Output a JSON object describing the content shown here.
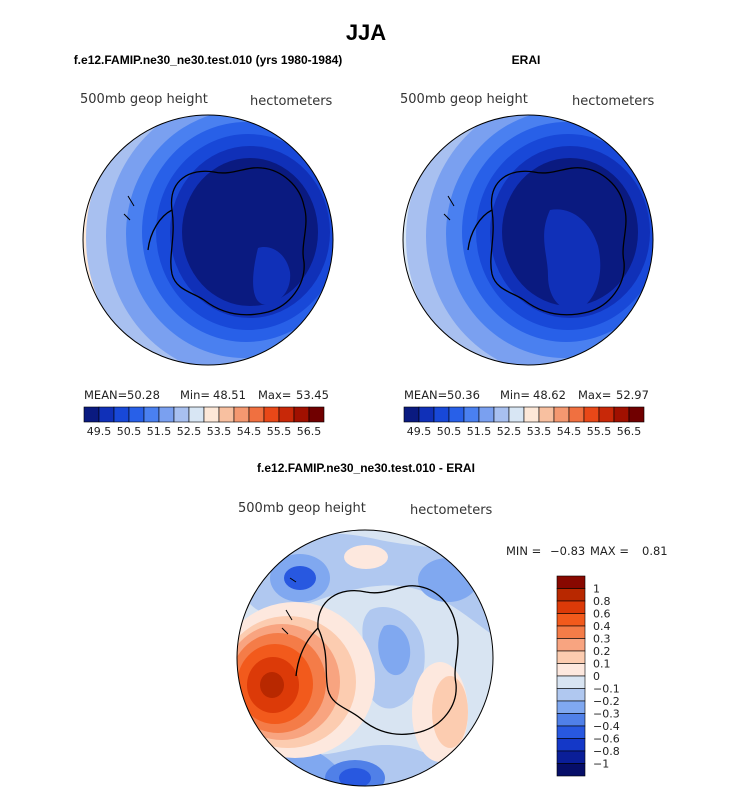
{
  "main_title": "JJA",
  "chart_data": [
    {
      "type": "heatmap",
      "panel": "model",
      "title": "f.e12.FAMIP.ne30_ne30.test.010 (yrs 1980-1984)",
      "variable": "500mb geop height",
      "units": "hectometers",
      "projection": "south polar stereographic",
      "stats": {
        "mean_label": "MEAN=",
        "mean": "50.28",
        "min_label": "Min=",
        "min": "48.51",
        "max_label": "Max=",
        "max": "53.45"
      }
    },
    {
      "type": "heatmap",
      "panel": "obs",
      "title": "ERAI",
      "variable": "500mb geop height",
      "units": "hectometers",
      "projection": "south polar stereographic",
      "stats": {
        "mean_label": "MEAN=",
        "mean": "50.36",
        "min_label": "Min=",
        "min": "48.62",
        "max_label": "Max=",
        "max": "52.97"
      }
    },
    {
      "type": "heatmap",
      "panel": "difference",
      "title": "f.e12.FAMIP.ne30_ne30.test.010 - ERAI",
      "variable": "500mb geop height",
      "units": "hectometers",
      "projection": "south polar stereographic",
      "stats": {
        "min_label": "MIN =",
        "min": "−0.83",
        "max_label": "MAX =",
        "max": "0.81"
      }
    }
  ],
  "colorbars": {
    "height": {
      "labels": [
        "49.5",
        "50.5",
        "51.5",
        "52.5",
        "53.5",
        "54.5",
        "55.5",
        "56.5"
      ],
      "colors": [
        "#0a1a80",
        "#1030b8",
        "#1848d8",
        "#2860e8",
        "#4a80f0",
        "#7aa0f0",
        "#a8c0f0",
        "#d8e6f4",
        "#fde8d8",
        "#f8c0a0",
        "#f49870",
        "#f07040",
        "#e84818",
        "#c82808",
        "#a01000",
        "#700000"
      ]
    },
    "difference": {
      "labels": [
        "1",
        "0.8",
        "0.6",
        "0.4",
        "0.3",
        "0.2",
        "0.1",
        "0",
        "−0.1",
        "−0.2",
        "−0.3",
        "−0.4",
        "−0.6",
        "−0.8",
        "−1"
      ],
      "colors": [
        "#880800",
        "#b82800",
        "#dc3a08",
        "#f25a1c",
        "#f47c48",
        "#f8a480",
        "#fcccb0",
        "#fde8de",
        "#d8e4f2",
        "#b0c8f0",
        "#80a8f0",
        "#5080e8",
        "#2858e0",
        "#1438c8",
        "#0a1e98",
        "#060e68"
      ]
    }
  }
}
